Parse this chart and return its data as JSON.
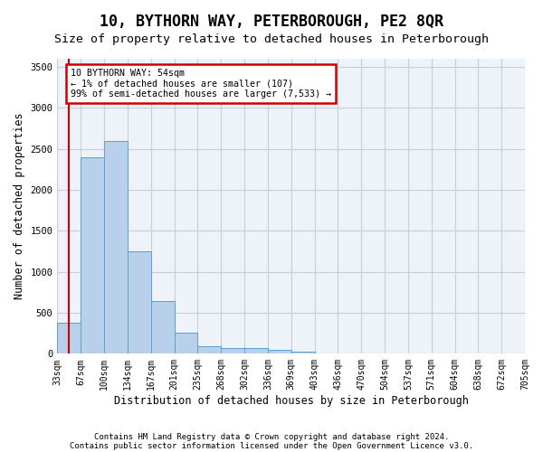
{
  "title": "10, BYTHORN WAY, PETERBOROUGH, PE2 8QR",
  "subtitle": "Size of property relative to detached houses in Peterborough",
  "xlabel": "Distribution of detached houses by size in Peterborough",
  "ylabel": "Number of detached properties",
  "footnote1": "Contains HM Land Registry data © Crown copyright and database right 2024.",
  "footnote2": "Contains public sector information licensed under the Open Government Licence v3.0.",
  "bar_values": [
    380,
    2400,
    2600,
    1250,
    640,
    260,
    95,
    65,
    65,
    50,
    30,
    5,
    5,
    5,
    5,
    5,
    5,
    5,
    5,
    5
  ],
  "x_labels": [
    "33sqm",
    "67sqm",
    "100sqm",
    "134sqm",
    "167sqm",
    "201sqm",
    "235sqm",
    "268sqm",
    "302sqm",
    "336sqm",
    "369sqm",
    "403sqm",
    "436sqm",
    "470sqm",
    "504sqm",
    "537sqm",
    "571sqm",
    "604sqm",
    "638sqm",
    "672sqm",
    "705sqm"
  ],
  "bar_color": "#b8d0ea",
  "bar_edge_color": "#5a9fd4",
  "highlight_line_color": "#cc0000",
  "annotation_line1": "10 BYTHORN WAY: 54sqm",
  "annotation_line2": "← 1% of detached houses are smaller (107)",
  "annotation_line3": "99% of semi-detached houses are larger (7,533) →",
  "annotation_box_edge_color": "#cc0000",
  "ylim": [
    0,
    3600
  ],
  "yticks": [
    0,
    500,
    1000,
    1500,
    2000,
    2500,
    3000,
    3500
  ],
  "background_color": "#eef2f9",
  "grid_color": "#c8cfdc",
  "title_fontsize": 12,
  "subtitle_fontsize": 9.5,
  "axis_label_fontsize": 8.5,
  "tick_fontsize": 7,
  "footnote_fontsize": 6.5
}
